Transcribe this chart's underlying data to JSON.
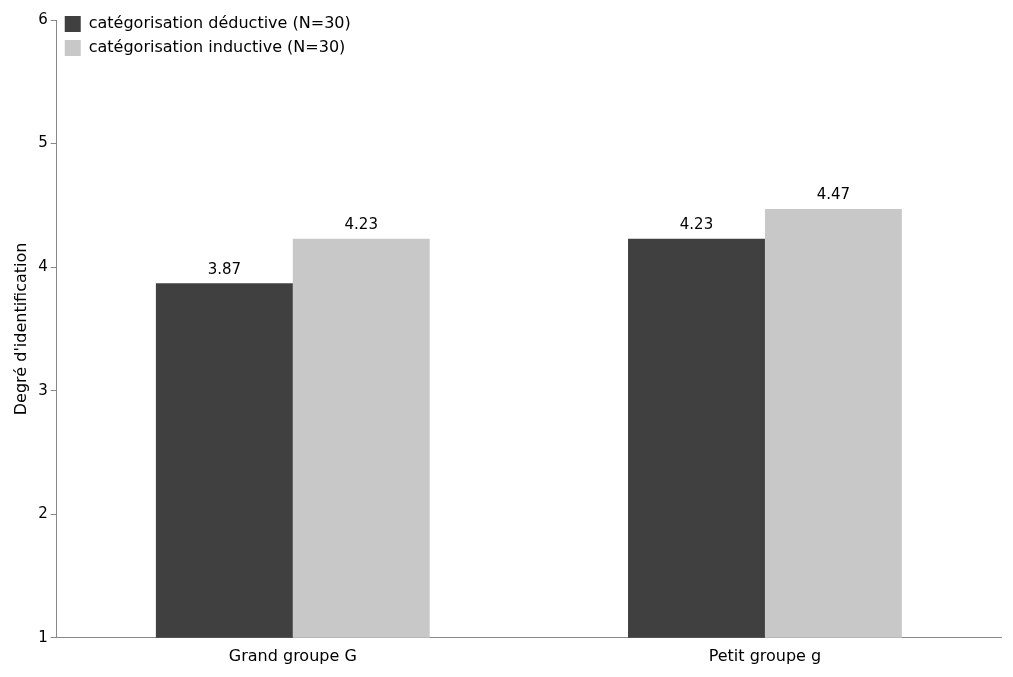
{
  "chart_data": {
    "type": "bar",
    "ylabel": "Degré d'identification",
    "categories": [
      "Grand groupe G",
      "Petit groupe g"
    ],
    "series": [
      {
        "name": "catégorisation déductive (N=30)",
        "color": "#404040",
        "values": [
          3.87,
          4.23
        ]
      },
      {
        "name": "catégorisation inductive (N=30)",
        "color": "#c8c8c8",
        "values": [
          4.23,
          4.47
        ]
      }
    ],
    "ylim": [
      1,
      6
    ],
    "yticks": [
      1,
      2,
      3,
      4,
      5,
      6
    ],
    "grid": false,
    "legend": "top left",
    "data_labels": true
  }
}
